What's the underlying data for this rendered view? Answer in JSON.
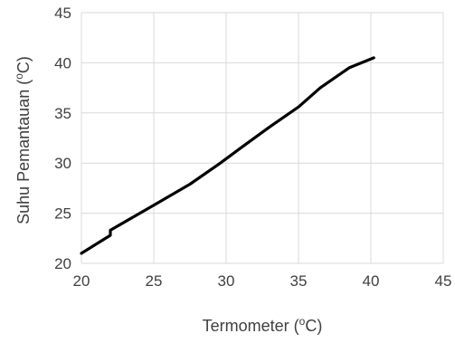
{
  "chart_data": {
    "type": "line",
    "title": "",
    "xlabel_prefix": "Termometer (",
    "xlabel_sup": "o",
    "xlabel_suffix": "C)",
    "ylabel_prefix": "Suhu Pemantauan (",
    "ylabel_sup": "o",
    "ylabel_suffix": "C)",
    "xlim": [
      20,
      45
    ],
    "ylim": [
      20,
      45
    ],
    "xticks": [
      20,
      25,
      30,
      35,
      40,
      45
    ],
    "yticks": [
      20,
      25,
      30,
      35,
      40,
      45
    ],
    "grid": true,
    "series": [
      {
        "color": "#000000",
        "x": [
          20.0,
          22.0,
          22.0,
          25.0,
          27.5,
          29.5,
          31.0,
          33.0,
          35.0,
          36.5,
          38.5,
          40.2
        ],
        "y": [
          21.0,
          22.8,
          23.3,
          25.8,
          27.9,
          29.9,
          31.5,
          33.6,
          35.6,
          37.5,
          39.5,
          40.5
        ]
      }
    ]
  }
}
